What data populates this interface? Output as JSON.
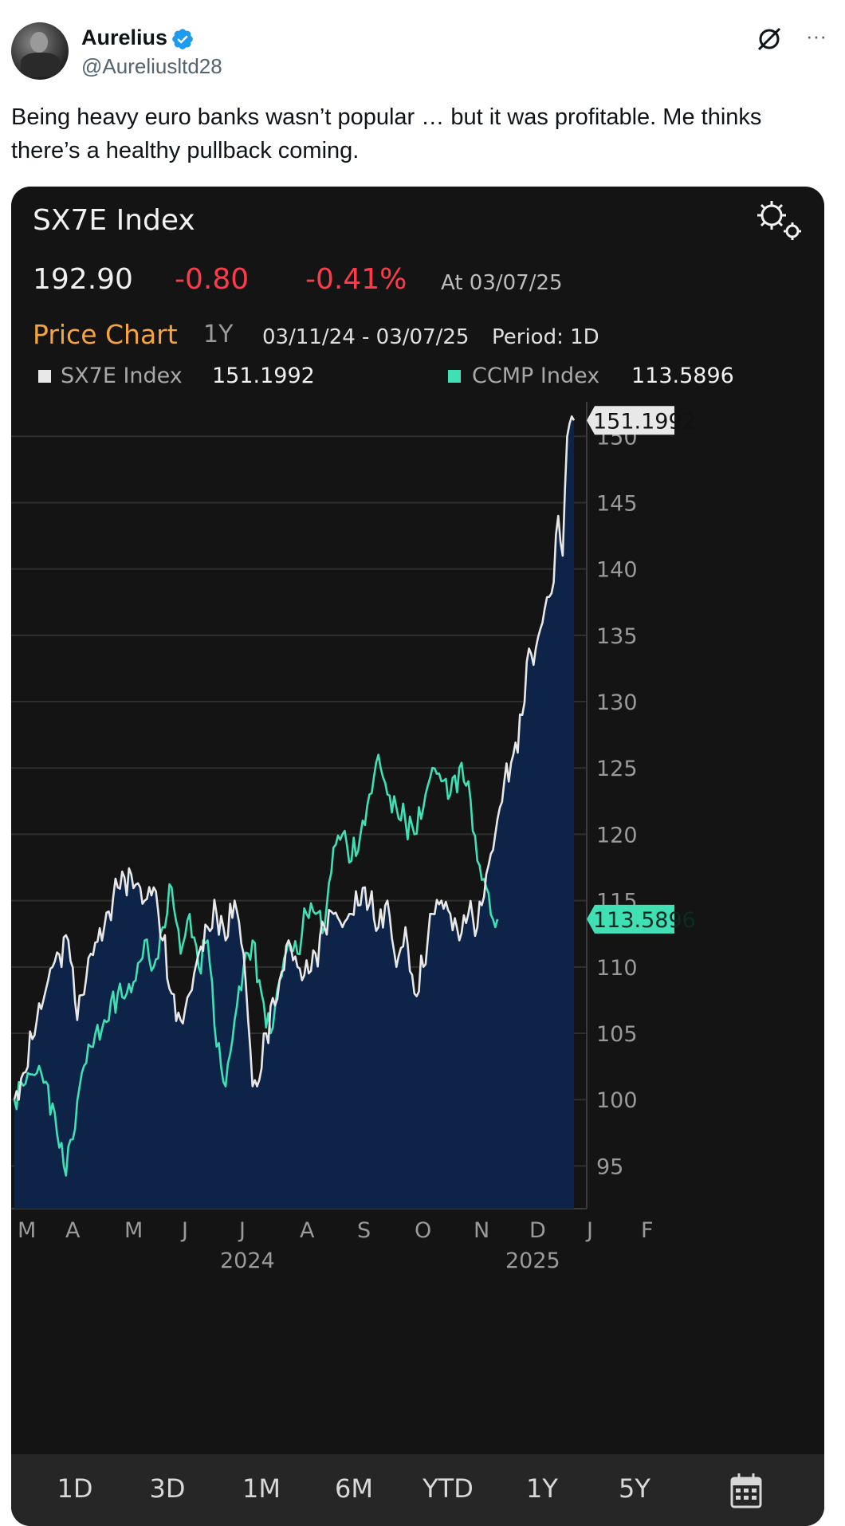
{
  "tweet": {
    "author_name": "Aurelius",
    "handle": "@Aureliusltd28",
    "text": "Being heavy euro banks wasn’t popular … but it was profitable. Me thinks there’s a healthy pullback coming.",
    "more_label": "···"
  },
  "card": {
    "title": "SX7E Index",
    "price": "192.90",
    "change": "-0.80",
    "change_pct": "-0.41%",
    "as_of": "At 03/07/25",
    "chart_label": "Price Chart",
    "range": "1Y",
    "date_range": "03/11/24 - 03/07/25",
    "period": "Period: 1D",
    "range_buttons": [
      "1D",
      "3D",
      "1M",
      "6M",
      "YTD",
      "1Y",
      "5Y"
    ],
    "colors": {
      "up": "#ffffff",
      "down": "#ff3b4a",
      "accent": "#f6a53b",
      "ccmp": "#3fe0b4",
      "fill": "#0d2347"
    }
  },
  "chart_data": {
    "type": "line",
    "title": "SX7E Index",
    "x_month_labels": [
      "M",
      "A",
      "M",
      "J",
      "J",
      "A",
      "S",
      "O",
      "N",
      "D",
      "J",
      "F"
    ],
    "x_year_labels": [
      "2024",
      "2025"
    ],
    "y_ticks": [
      95,
      100,
      105,
      110,
      115,
      120,
      125,
      130,
      135,
      140,
      145,
      150
    ],
    "ylim": [
      92.5,
      152
    ],
    "x_points": 250,
    "series": [
      {
        "name": "SX7E Index",
        "last": "151.1992",
        "color": "#e8e8e8",
        "fill": true,
        "anchors": [
          [
            0,
            100
          ],
          [
            4,
            102
          ],
          [
            10,
            106
          ],
          [
            17,
            110
          ],
          [
            24,
            112
          ],
          [
            28,
            106
          ],
          [
            34,
            111
          ],
          [
            40,
            113
          ],
          [
            46,
            116
          ],
          [
            52,
            117
          ],
          [
            58,
            115
          ],
          [
            62,
            116
          ],
          [
            66,
            112
          ],
          [
            70,
            108
          ],
          [
            74,
            106
          ],
          [
            78,
            108
          ],
          [
            82,
            111
          ],
          [
            86,
            113
          ],
          [
            90,
            114
          ],
          [
            94,
            112
          ],
          [
            98,
            115
          ],
          [
            102,
            111
          ],
          [
            106,
            101
          ],
          [
            108,
            101
          ],
          [
            112,
            105
          ],
          [
            118,
            109
          ],
          [
            122,
            112
          ],
          [
            128,
            109
          ],
          [
            134,
            111
          ],
          [
            138,
            113
          ],
          [
            142,
            114
          ],
          [
            146,
            113
          ],
          [
            150,
            114
          ],
          [
            156,
            116
          ],
          [
            162,
            113
          ],
          [
            166,
            115
          ],
          [
            170,
            110
          ],
          [
            174,
            113
          ],
          [
            178,
            108
          ],
          [
            182,
            110
          ],
          [
            186,
            114
          ],
          [
            190,
            115
          ],
          [
            194,
            114
          ],
          [
            198,
            112
          ],
          [
            202,
            114
          ],
          [
            206,
            113
          ],
          [
            210,
            117
          ],
          [
            214,
            120
          ],
          [
            218,
            124
          ],
          [
            222,
            126
          ],
          [
            226,
            129
          ],
          [
            228,
            133
          ],
          [
            232,
            134
          ],
          [
            236,
            137
          ],
          [
            240,
            139
          ],
          [
            242,
            144
          ],
          [
            244,
            141
          ],
          [
            245,
            146
          ],
          [
            246,
            150
          ],
          [
            248,
            151.5
          ],
          [
            249,
            151.2
          ]
        ],
        "wiggle": 1.0
      },
      {
        "name": "CCMP Index",
        "last": "113.5896",
        "color": "#3fe0b4",
        "fill": false,
        "anchors": [
          [
            0,
            100
          ],
          [
            6,
            102
          ],
          [
            12,
            102
          ],
          [
            18,
            99
          ],
          [
            22,
            95
          ],
          [
            26,
            97
          ],
          [
            30,
            102
          ],
          [
            34,
            104
          ],
          [
            40,
            106
          ],
          [
            46,
            108
          ],
          [
            50,
            108
          ],
          [
            54,
            109
          ],
          [
            58,
            112
          ],
          [
            62,
            110
          ],
          [
            66,
            113
          ],
          [
            70,
            116
          ],
          [
            74,
            111
          ],
          [
            78,
            114
          ],
          [
            82,
            110
          ],
          [
            86,
            112
          ],
          [
            90,
            104
          ],
          [
            94,
            101
          ],
          [
            98,
            106
          ],
          [
            102,
            110
          ],
          [
            106,
            112
          ],
          [
            110,
            108
          ],
          [
            114,
            105
          ],
          [
            118,
            109
          ],
          [
            122,
            112
          ],
          [
            126,
            111
          ],
          [
            130,
            114
          ],
          [
            134,
            114
          ],
          [
            138,
            113
          ],
          [
            142,
            119
          ],
          [
            146,
            120
          ],
          [
            150,
            118
          ],
          [
            154,
            120
          ],
          [
            158,
            123
          ],
          [
            162,
            126
          ],
          [
            166,
            123
          ],
          [
            170,
            122
          ],
          [
            174,
            121
          ],
          [
            178,
            120
          ],
          [
            182,
            122
          ],
          [
            186,
            125
          ],
          [
            190,
            124
          ],
          [
            194,
            123
          ],
          [
            198,
            125
          ],
          [
            202,
            124
          ],
          [
            206,
            118
          ],
          [
            210,
            116
          ],
          [
            214,
            113
          ],
          [
            215,
            113.6
          ]
        ],
        "wiggle": 0.9
      }
    ]
  }
}
